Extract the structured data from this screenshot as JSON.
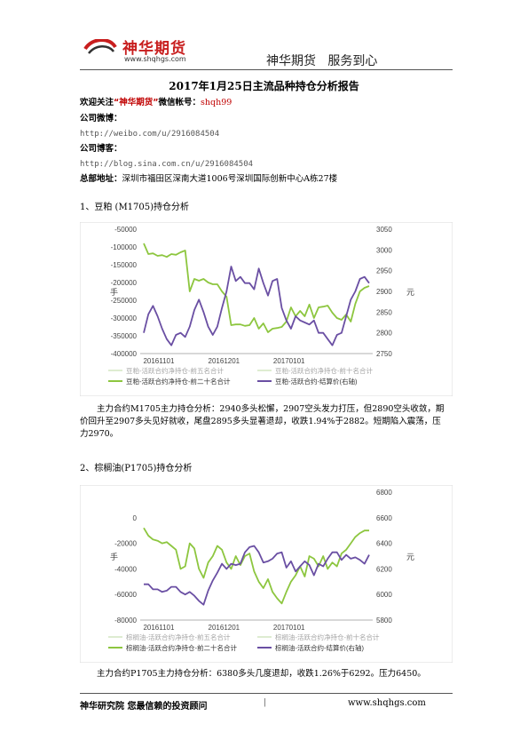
{
  "header": {
    "logo_title": "神华期货",
    "logo_url": "www.shqhgs.com",
    "slogan": "神华期货   服务到心"
  },
  "report_title": "2017年1月25日主流品种持仓分析报告",
  "contacts": {
    "follow_label": "欢迎关注",
    "follow_name": "“神华期货”",
    "wechat_label": "微信帐号：",
    "wechat_id": "shqh99",
    "weibo_label": "公司微博：",
    "weibo_url": "http://weibo.com/u/2916084504",
    "blog_label": "公司博客：",
    "blog_url": "http://blog.sina.com.cn/u/2916084504",
    "address_label": "总部地址：",
    "address": "深圳市福田区深南大道1006号深圳国际创新中心A栋27楼"
  },
  "sections": [
    {
      "heading": "1、豆粕 (M1705)持仓分析",
      "analysis": "主力合约M1705主力持仓分析：2940多头松懈，2907空头发力打压，但2890空头收敛，期价回升至2907多头见好就收，尾盘2895多头显著退却，收跌1.94%于2882。短期陷入震荡，压力2970。"
    },
    {
      "heading": "2、棕榈油(P1705)持仓分析",
      "analysis": "主力合约P1705主力持仓分析：6380多头几度退却，收跌1.26%于6292。压力6450。"
    }
  ],
  "chart_data": [
    {
      "type": "line",
      "ylabel": "手",
      "y2label": "元",
      "ylim": [
        -400000,
        -50000
      ],
      "y_ticks": [
        "-50000",
        "-100000",
        "-150000",
        "-200000",
        "-250000",
        "-300000",
        "-350000",
        "-400000"
      ],
      "y2lim": [
        2750,
        3050
      ],
      "y2_ticks": [
        "3050",
        "3000",
        "2950",
        "2900",
        "2850",
        "2800",
        "2750"
      ],
      "x_ticks": [
        "20161101",
        "20161201",
        "20170101"
      ],
      "legend": [
        {
          "label": "豆粕-活跃合约净持仓-前五名合计",
          "color": "#b8d69a",
          "faded": true
        },
        {
          "label": "豆粕-活跃合约净持仓-前十名合计",
          "color": "#b8d69a",
          "faded": true
        },
        {
          "label": "豆粕-活跃合约净持仓-前二十名合计",
          "color": "#8dc63f",
          "faded": false
        },
        {
          "label": "豆粕-活跃合约-结算价(右轴)",
          "color": "#6a4fa3",
          "faded": false
        }
      ],
      "series": [
        {
          "name": "豆粕-活跃合约净持仓-前二十名合计",
          "color": "#8dc63f",
          "axis": "left",
          "values": [
            -90000,
            -120000,
            -118000,
            -125000,
            -123000,
            -128000,
            -120000,
            -122000,
            -115000,
            -110000,
            -225000,
            -190000,
            -195000,
            -190000,
            -200000,
            -205000,
            -205000,
            -225000,
            -240000,
            -320000,
            -318000,
            -318000,
            -322000,
            -320000,
            -300000,
            -330000,
            -315000,
            -340000,
            -330000,
            -328000,
            -325000,
            -310000,
            -270000,
            -295000,
            -280000,
            -295000,
            -262000,
            -300000,
            -270000,
            -268000,
            -265000,
            -285000,
            -300000,
            -305000,
            -290000,
            -310000,
            -260000,
            -225000,
            -215000,
            -210000
          ]
        },
        {
          "name": "豆粕-活跃合约-结算价(右轴)",
          "color": "#6a4fa3",
          "axis": "right",
          "values": [
            2800,
            2845,
            2865,
            2840,
            2810,
            2785,
            2770,
            2795,
            2800,
            2790,
            2815,
            2855,
            2880,
            2850,
            2815,
            2795,
            2815,
            2860,
            2900,
            2960,
            2925,
            2935,
            2920,
            2920,
            2905,
            2955,
            2920,
            2890,
            2925,
            2930,
            2860,
            2830,
            2810,
            2840,
            2830,
            2825,
            2820,
            2830,
            2800,
            2800,
            2785,
            2770,
            2795,
            2800,
            2840,
            2880,
            2900,
            2930,
            2935,
            2920
          ]
        }
      ]
    },
    {
      "type": "line",
      "ylabel": "手",
      "y2label": "元",
      "ylim": [
        -80000,
        20000
      ],
      "y_ticks": [
        "0",
        "-20000",
        "-40000",
        "-60000",
        "-80000"
      ],
      "y2lim": [
        5800,
        6800
      ],
      "y2_ticks": [
        "6800",
        "6600",
        "6400",
        "6200",
        "6000",
        "5800"
      ],
      "x_ticks": [
        "20161101",
        "20161201",
        "20170101"
      ],
      "legend": [
        {
          "label": "棕榈油-活跃合约净持仓-前五名合计",
          "color": "#b8d69a",
          "faded": true
        },
        {
          "label": "棕榈油-活跃合约净持仓-前十名合计",
          "color": "#b8d69a",
          "faded": true
        },
        {
          "label": "棕榈油-活跃合约净持仓-前二十名合计",
          "color": "#8dc63f",
          "faded": false
        },
        {
          "label": "棕榈油-活跃合约-结算价(右轴)",
          "color": "#6a4fa3",
          "faded": false
        }
      ],
      "series": [
        {
          "name": "棕榈油-活跃合约净持仓-前二十名合计",
          "color": "#8dc63f",
          "axis": "left",
          "values": [
            -8000,
            -14000,
            -17000,
            -18000,
            -20000,
            -19000,
            -22000,
            -25000,
            -40000,
            -38000,
            -20000,
            -24000,
            -40000,
            -47000,
            -35000,
            -30000,
            -22000,
            -25000,
            -35000,
            -40000,
            -30000,
            -37000,
            -30000,
            -28000,
            -42000,
            -50000,
            -55000,
            -48000,
            -58000,
            -63000,
            -67000,
            -58000,
            -50000,
            -45000,
            -38000,
            -46000,
            -30000,
            -32000,
            -38000,
            -30000,
            -40000,
            -35000,
            -38000,
            -28000,
            -25000,
            -20000,
            -15000,
            -12000,
            -10000,
            -10000
          ]
        },
        {
          "name": "棕榈油-活跃合约-结算价(右轴)",
          "color": "#6a4fa3",
          "axis": "right",
          "values": [
            6080,
            6080,
            6040,
            6040,
            6020,
            6030,
            6060,
            6060,
            6020,
            6000,
            6020,
            5990,
            5950,
            5920,
            6030,
            6110,
            6170,
            6240,
            6200,
            6240,
            6230,
            6240,
            6330,
            6370,
            6380,
            6330,
            6250,
            6260,
            6280,
            6320,
            6330,
            6210,
            6260,
            6180,
            6220,
            6260,
            6230,
            6150,
            6240,
            6220,
            6280,
            6330,
            6330,
            6270,
            6310,
            6280,
            6290,
            6270,
            6240,
            6310
          ]
        }
      ]
    }
  ],
  "footer": {
    "left": "神华研究院   您最信赖的投资顾问",
    "sep": "|",
    "right": "www.shqhgs.com"
  }
}
